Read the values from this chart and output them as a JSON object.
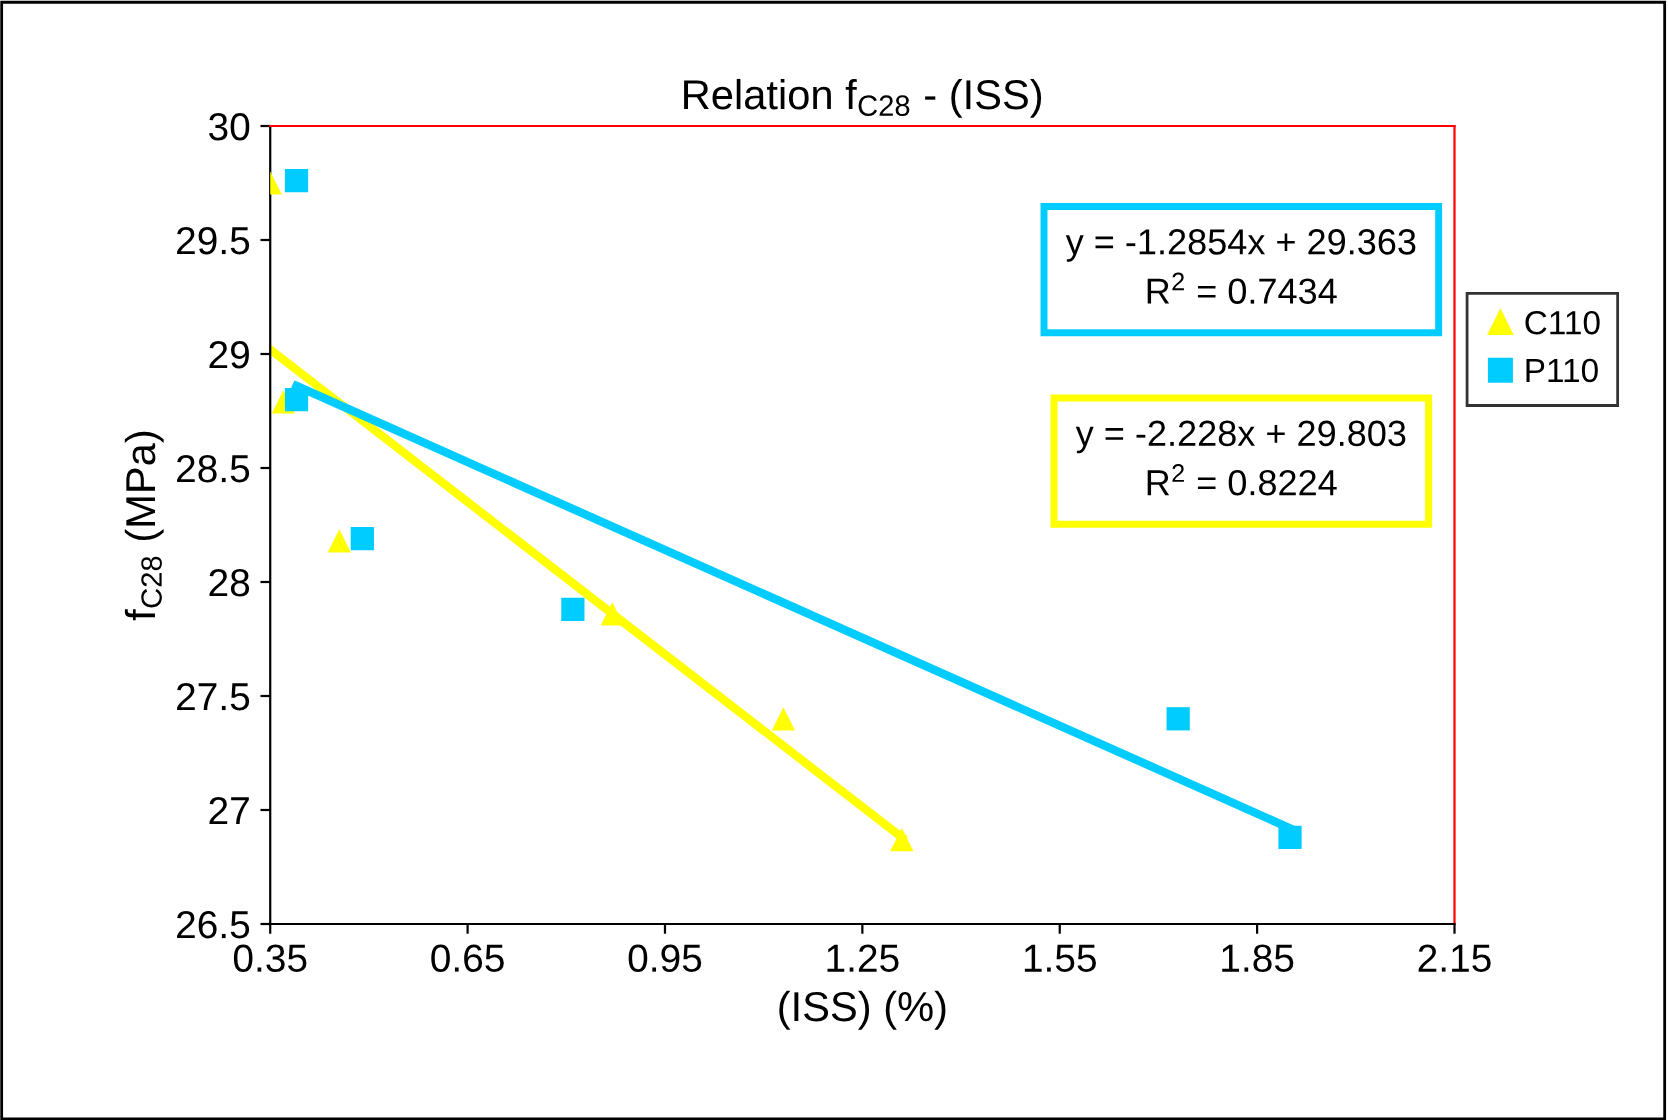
{
  "chart_data": {
    "type": "scatter",
    "title": "Relation f$_{C28}$ - (ISS)",
    "xlabel": "(ISS) (%)",
    "ylabel": "f$_{C28}$ (MPa)",
    "xlim": [
      0.35,
      2.15
    ],
    "xticks": [
      0.35,
      0.65,
      0.95,
      1.25,
      1.55,
      1.85,
      2.15
    ],
    "ylim": [
      26.5,
      30
    ],
    "yticks": [
      26.5,
      27,
      27.5,
      28,
      28.5,
      29,
      29.5,
      30
    ],
    "grid": false,
    "legend": "right",
    "series": [
      {
        "name": "C110",
        "color": "#ffff00",
        "marker": "triangle",
        "x": [
          0.35,
          0.37,
          0.455,
          0.87,
          1.13,
          1.31
        ],
        "values": [
          29.75,
          28.79,
          28.18,
          27.86,
          27.4,
          26.87
        ]
      },
      {
        "name": "P110",
        "color": "#00ccff",
        "marker": "square",
        "x": [
          0.39,
          0.39,
          0.49,
          0.81,
          1.73,
          1.9
        ],
        "values": [
          29.76,
          28.8,
          28.19,
          27.88,
          27.4,
          26.88
        ]
      },
      {
        "type": "line",
        "color": "#ffff00",
        "marker": "none",
        "line_style": "solid",
        "x": [
          0.35,
          1.31
        ],
        "values": [
          29.02,
          26.88
        ]
      },
      {
        "type": "line",
        "color": "#00ccff",
        "marker": "none",
        "line_style": "solid",
        "x": [
          0.39,
          1.9
        ],
        "values": [
          28.86,
          26.92
        ]
      }
    ],
    "annotations": [
      "y = -1.2854x + 29.363\nR$^{2}$ = 0.7434",
      "y = -2.228x + 29.803\nR$^{2}$ = 0.8224"
    ]
  }
}
